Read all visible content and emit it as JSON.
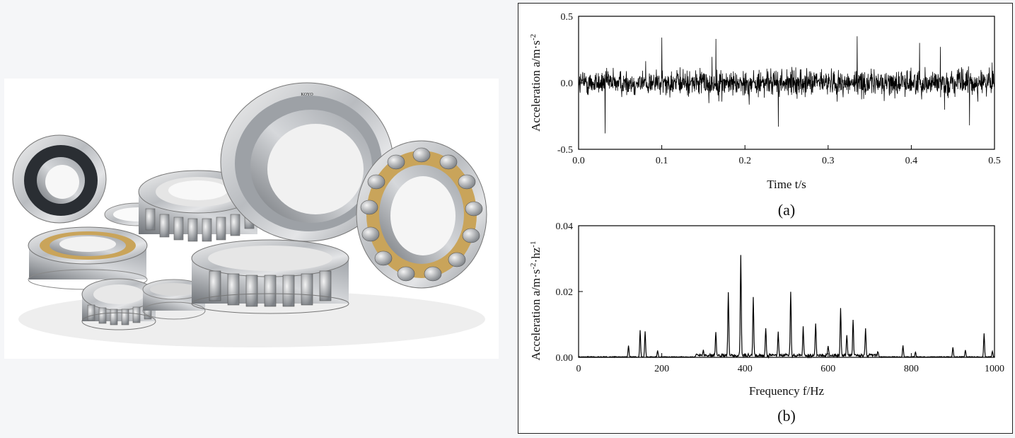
{
  "photo": {
    "subject": "bearing-assortment-photo",
    "brand_mark": "KOYO"
  },
  "chart_data": [
    {
      "type": "line",
      "panel_label": "(a)",
      "xlabel": "Time t/s",
      "ylabel_base": "Acceleration a/m·s",
      "ylabel_sup": "-2",
      "xlim": [
        0,
        0.5
      ],
      "ylim": [
        -0.5,
        0.5
      ],
      "xticks": [
        "0.0",
        "0.1",
        "0.2",
        "0.3",
        "0.4",
        "0.5"
      ],
      "yticks": [
        "-0.5",
        "0.0",
        "0.5"
      ],
      "grid": false,
      "series": [
        {
          "color": "#000000",
          "signal_summary": {
            "samples": 1600,
            "typical_amplitude": 0.12,
            "peak_max": 0.35,
            "peak_min": -0.38
          },
          "notable_peaks": [
            {
              "x": 0.032,
              "y": -0.38
            },
            {
              "x": 0.1,
              "y": 0.34
            },
            {
              "x": 0.165,
              "y": 0.33
            },
            {
              "x": 0.24,
              "y": -0.33
            },
            {
              "x": 0.335,
              "y": 0.35
            },
            {
              "x": 0.41,
              "y": 0.3
            },
            {
              "x": 0.435,
              "y": 0.27
            },
            {
              "x": 0.47,
              "y": -0.32
            }
          ]
        }
      ]
    },
    {
      "type": "line",
      "panel_label": "(b)",
      "xlabel": "Frequency f/Hz",
      "ylabel_base": "Acceleration a/m·s",
      "ylabel_sup1": "-2",
      "ylabel_mid": "·hz",
      "ylabel_sup2": "-1",
      "xlim": [
        0,
        1000
      ],
      "ylim": [
        0,
        0.04
      ],
      "xticks": [
        "0",
        "200",
        "400",
        "600",
        "800",
        "1000"
      ],
      "yticks": [
        "0.00",
        "0.02",
        "0.04"
      ],
      "grid": false,
      "series": [
        {
          "color": "#000000",
          "peaks": [
            {
              "x": 120,
              "y": 0.0035
            },
            {
              "x": 148,
              "y": 0.008
            },
            {
              "x": 160,
              "y": 0.0078
            },
            {
              "x": 190,
              "y": 0.002
            },
            {
              "x": 300,
              "y": 0.0018
            },
            {
              "x": 330,
              "y": 0.0075
            },
            {
              "x": 360,
              "y": 0.0195
            },
            {
              "x": 390,
              "y": 0.0305
            },
            {
              "x": 420,
              "y": 0.0175
            },
            {
              "x": 450,
              "y": 0.0082
            },
            {
              "x": 480,
              "y": 0.0068
            },
            {
              "x": 510,
              "y": 0.0195
            },
            {
              "x": 540,
              "y": 0.0085
            },
            {
              "x": 570,
              "y": 0.01
            },
            {
              "x": 600,
              "y": 0.003
            },
            {
              "x": 630,
              "y": 0.0145
            },
            {
              "x": 645,
              "y": 0.006
            },
            {
              "x": 660,
              "y": 0.0105
            },
            {
              "x": 690,
              "y": 0.0085
            },
            {
              "x": 720,
              "y": 0.0015
            },
            {
              "x": 780,
              "y": 0.0035
            },
            {
              "x": 810,
              "y": 0.0015
            },
            {
              "x": 900,
              "y": 0.0028
            },
            {
              "x": 930,
              "y": 0.002
            },
            {
              "x": 975,
              "y": 0.0072
            },
            {
              "x": 995,
              "y": 0.0018
            }
          ]
        }
      ]
    }
  ]
}
